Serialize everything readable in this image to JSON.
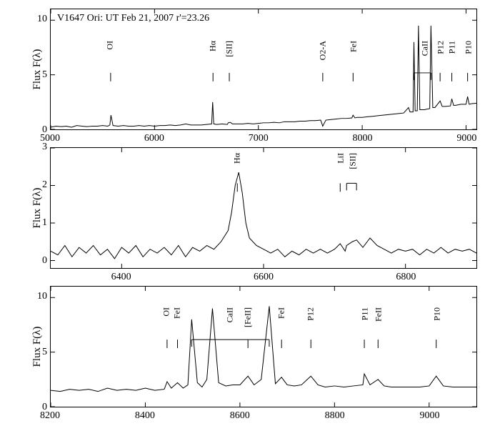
{
  "figure": {
    "background_color": "#ffffff",
    "axis_color": "#000000",
    "line_color": "#000000",
    "line_width": 1.0,
    "font_family": "serif",
    "ylabel": "Flux F(λ)",
    "label_fontsize": 15,
    "tick_fontsize": 14,
    "annotation_fontsize": 12,
    "title": "V1647 Ori: UT Feb 21, 2007 r'=23.26"
  },
  "panel1": {
    "type": "line",
    "xlim": [
      5000,
      9100
    ],
    "ylim": [
      0,
      11
    ],
    "xticks": [
      5000,
      6000,
      7000,
      8000,
      9000
    ],
    "yticks": [
      0,
      5,
      10
    ],
    "lines": [
      {
        "x": 5577,
        "label": "OI"
      },
      {
        "x": 6563,
        "label": "Hα"
      },
      {
        "x": 6720,
        "label": "[SII]"
      },
      {
        "x": 7620,
        "label": "O2-A"
      },
      {
        "x": 7912,
        "label": "FeI"
      },
      {
        "x": 8600,
        "label": "CaII",
        "bracket": [
          8498,
          8662
        ]
      },
      {
        "x": 8750,
        "label": "P12"
      },
      {
        "x": 8863,
        "label": "P11"
      },
      {
        "x": 9015,
        "label": "P10"
      }
    ],
    "spectrum_x": [
      5000,
      5050,
      5100,
      5150,
      5200,
      5250,
      5300,
      5350,
      5400,
      5450,
      5500,
      5550,
      5570,
      5580,
      5600,
      5650,
      5700,
      5750,
      5800,
      5850,
      5900,
      5950,
      6000,
      6050,
      6100,
      6150,
      6200,
      6250,
      6300,
      6350,
      6400,
      6450,
      6500,
      6550,
      6560,
      6570,
      6600,
      6650,
      6700,
      6710,
      6730,
      6750,
      6800,
      6850,
      6900,
      6950,
      7000,
      7050,
      7100,
      7150,
      7200,
      7250,
      7300,
      7350,
      7400,
      7450,
      7500,
      7550,
      7600,
      7620,
      7650,
      7700,
      7750,
      7800,
      7850,
      7900,
      7912,
      7930,
      7950,
      8000,
      8050,
      8100,
      8150,
      8200,
      8250,
      8300,
      8350,
      8400,
      8446,
      8460,
      8490,
      8498,
      8510,
      8530,
      8542,
      8555,
      8580,
      8600,
      8620,
      8650,
      8662,
      8680,
      8700,
      8750,
      8770,
      8800,
      8850,
      8863,
      8880,
      8900,
      8950,
      9000,
      9015,
      9030,
      9050,
      9100
    ],
    "spectrum_y": [
      0.2,
      0.3,
      0.25,
      0.3,
      0.2,
      0.35,
      0.3,
      0.25,
      0.3,
      0.3,
      0.35,
      0.3,
      0.4,
      1.3,
      0.35,
      0.3,
      0.35,
      0.3,
      0.3,
      0.35,
      0.3,
      0.35,
      0.3,
      0.35,
      0.35,
      0.4,
      0.35,
      0.4,
      0.5,
      0.4,
      0.4,
      0.4,
      0.45,
      0.5,
      2.5,
      0.5,
      0.45,
      0.5,
      0.45,
      0.6,
      0.65,
      0.5,
      0.5,
      0.5,
      0.55,
      0.5,
      0.55,
      0.6,
      0.6,
      0.65,
      0.6,
      0.7,
      0.7,
      0.7,
      0.75,
      0.75,
      0.8,
      0.8,
      0.85,
      0.3,
      0.85,
      0.9,
      0.95,
      1.0,
      1.0,
      1.05,
      1.3,
      1.05,
      1.1,
      1.1,
      1.15,
      1.2,
      1.25,
      1.3,
      1.35,
      1.4,
      1.45,
      1.5,
      2.0,
      1.6,
      1.6,
      8.0,
      1.7,
      1.7,
      9.5,
      1.8,
      1.8,
      1.8,
      1.85,
      1.9,
      9.5,
      2.0,
      2.0,
      2.6,
      2.1,
      2.1,
      2.15,
      2.8,
      2.2,
      2.2,
      2.3,
      2.3,
      3.0,
      2.3,
      2.35,
      2.4
    ]
  },
  "panel2": {
    "type": "line",
    "xlim": [
      6300,
      6900
    ],
    "ylim": [
      -0.2,
      3
    ],
    "xticks": [
      6400,
      6600,
      6800
    ],
    "yticks": [
      0,
      1,
      2,
      3
    ],
    "lines": [
      {
        "x": 6563,
        "label": "Hα"
      },
      {
        "x": 6708,
        "label": "LiI"
      },
      {
        "x": 6725,
        "label": "[SII]",
        "bracket": [
          6717,
          6731
        ]
      }
    ],
    "spectrum_x": [
      6300,
      6310,
      6320,
      6330,
      6340,
      6350,
      6360,
      6370,
      6380,
      6390,
      6400,
      6410,
      6420,
      6430,
      6440,
      6450,
      6460,
      6470,
      6480,
      6490,
      6500,
      6510,
      6520,
      6530,
      6540,
      6550,
      6555,
      6560,
      6565,
      6570,
      6575,
      6580,
      6590,
      6600,
      6610,
      6620,
      6630,
      6640,
      6650,
      6660,
      6670,
      6680,
      6690,
      6700,
      6708,
      6715,
      6717,
      6725,
      6731,
      6740,
      6750,
      6760,
      6770,
      6780,
      6790,
      6800,
      6810,
      6820,
      6830,
      6840,
      6850,
      6860,
      6870,
      6880,
      6890,
      6900
    ],
    "spectrum_y": [
      0.25,
      0.15,
      0.4,
      0.1,
      0.35,
      0.2,
      0.4,
      0.15,
      0.3,
      0.05,
      0.35,
      0.2,
      0.4,
      0.1,
      0.3,
      0.2,
      0.35,
      0.15,
      0.4,
      0.1,
      0.35,
      0.25,
      0.4,
      0.3,
      0.5,
      0.8,
      1.3,
      2.0,
      2.35,
      1.8,
      1.0,
      0.6,
      0.4,
      0.3,
      0.2,
      0.3,
      0.1,
      0.25,
      0.15,
      0.3,
      0.2,
      0.3,
      0.2,
      0.3,
      0.45,
      0.25,
      0.4,
      0.5,
      0.55,
      0.35,
      0.6,
      0.4,
      0.3,
      0.2,
      0.3,
      0.25,
      0.3,
      0.15,
      0.3,
      0.2,
      0.35,
      0.2,
      0.3,
      0.25,
      0.3,
      0.2
    ]
  },
  "panel3": {
    "type": "line",
    "xlim": [
      8200,
      9100
    ],
    "ylim": [
      0,
      11
    ],
    "xticks": [
      8200,
      8400,
      8600,
      8800,
      9000
    ],
    "yticks": [
      0,
      5,
      10
    ],
    "lines": [
      {
        "x": 8446,
        "label": "OI"
      },
      {
        "x": 8468,
        "label": "FeI"
      },
      {
        "x": 8580,
        "label": "CaII",
        "bracket": [
          8498,
          8662
        ]
      },
      {
        "x": 8617,
        "label": "[FeII]"
      },
      {
        "x": 8688,
        "label": "FeI"
      },
      {
        "x": 8750,
        "label": "P12"
      },
      {
        "x": 8863,
        "label": "P11"
      },
      {
        "x": 8892,
        "label": "FeII"
      },
      {
        "x": 9015,
        "label": "P10"
      }
    ],
    "spectrum_x": [
      8200,
      8220,
      8240,
      8260,
      8280,
      8300,
      8320,
      8340,
      8360,
      8380,
      8400,
      8420,
      8440,
      8446,
      8455,
      8468,
      8480,
      8490,
      8498,
      8510,
      8520,
      8530,
      8542,
      8555,
      8570,
      8585,
      8600,
      8617,
      8630,
      8645,
      8662,
      8675,
      8688,
      8700,
      8715,
      8730,
      8750,
      8765,
      8780,
      8800,
      8820,
      8840,
      8860,
      8863,
      8875,
      8892,
      8905,
      8920,
      8940,
      8960,
      8980,
      9000,
      9015,
      9030,
      9050,
      9070,
      9090,
      9100
    ],
    "spectrum_y": [
      1.5,
      1.4,
      1.6,
      1.5,
      1.6,
      1.4,
      1.7,
      1.5,
      1.6,
      1.5,
      1.7,
      1.5,
      1.6,
      2.3,
      1.7,
      2.2,
      1.7,
      2.0,
      8.0,
      2.2,
      1.8,
      2.5,
      9.0,
      2.2,
      1.9,
      2.0,
      2.0,
      2.8,
      2.0,
      2.5,
      9.2,
      2.1,
      2.7,
      2.0,
      1.9,
      2.0,
      2.8,
      2.0,
      1.8,
      1.9,
      1.8,
      1.9,
      2.0,
      3.0,
      2.0,
      2.5,
      1.9,
      1.8,
      1.8,
      1.8,
      1.8,
      1.9,
      2.8,
      1.9,
      1.8,
      1.8,
      1.8,
      1.8
    ]
  }
}
